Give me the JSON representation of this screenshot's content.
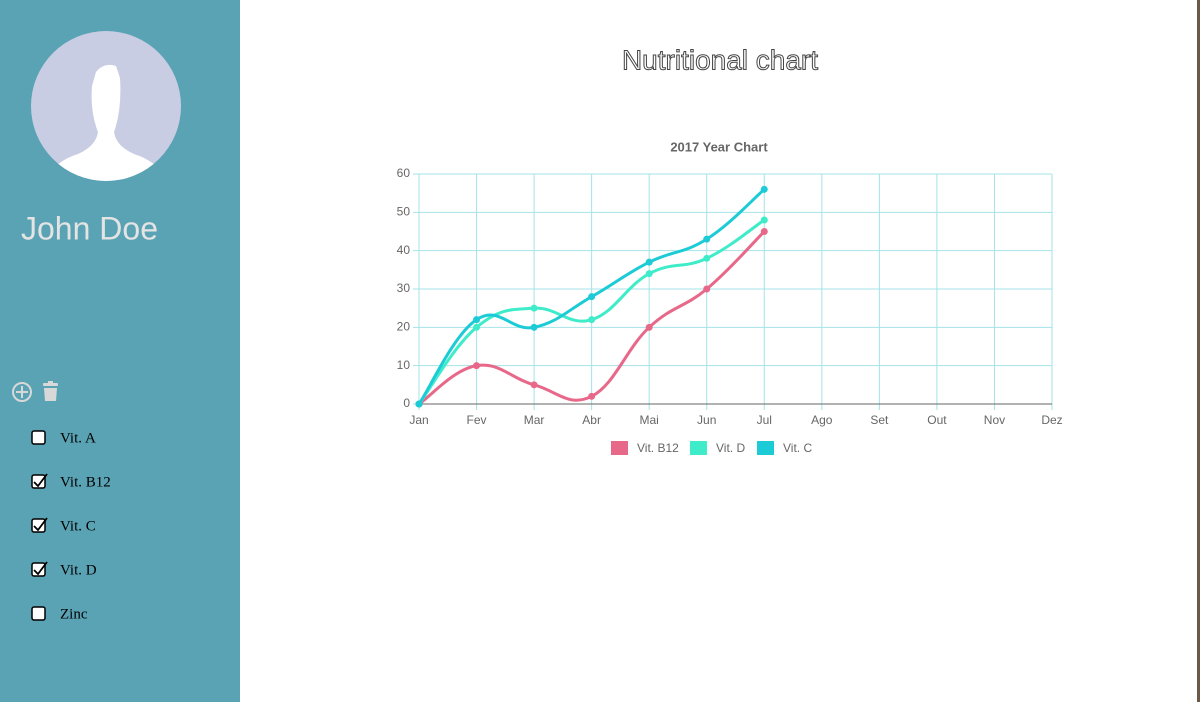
{
  "sidebar": {
    "name": "John Doe",
    "items": [
      {
        "label": "Vit. A",
        "checked": false
      },
      {
        "label": "Vit. B12",
        "checked": true
      },
      {
        "label": "Vit. C",
        "checked": true
      },
      {
        "label": "Vit. D",
        "checked": true
      },
      {
        "label": "Zinc",
        "checked": false
      }
    ]
  },
  "header": {
    "title": "Nutritional chart"
  },
  "chart_data": {
    "type": "line",
    "title": "2017 Year Chart",
    "categories": [
      "Jan",
      "Fev",
      "Mar",
      "Abr",
      "Mai",
      "Jun",
      "Jul",
      "Ago",
      "Set",
      "Out",
      "Nov",
      "Dez"
    ],
    "series": [
      {
        "name": "Vit. B12",
        "color": "#e8688a",
        "values": [
          0,
          10,
          5,
          2,
          20,
          30,
          45,
          null,
          null,
          null,
          null,
          null
        ]
      },
      {
        "name": "Vit. D",
        "color": "#3fecc9",
        "values": [
          0,
          20,
          25,
          22,
          34,
          38,
          48,
          null,
          null,
          null,
          null,
          null
        ]
      },
      {
        "name": "Vit. C",
        "color": "#1ccbd5",
        "values": [
          0,
          22,
          20,
          28,
          37,
          43,
          56,
          null,
          null,
          null,
          null,
          null
        ]
      }
    ],
    "ylim": [
      0,
      60
    ],
    "yticks": [
      0,
      10,
      20,
      30,
      40,
      50,
      60
    ],
    "grid": true,
    "legend": "bottom"
  }
}
